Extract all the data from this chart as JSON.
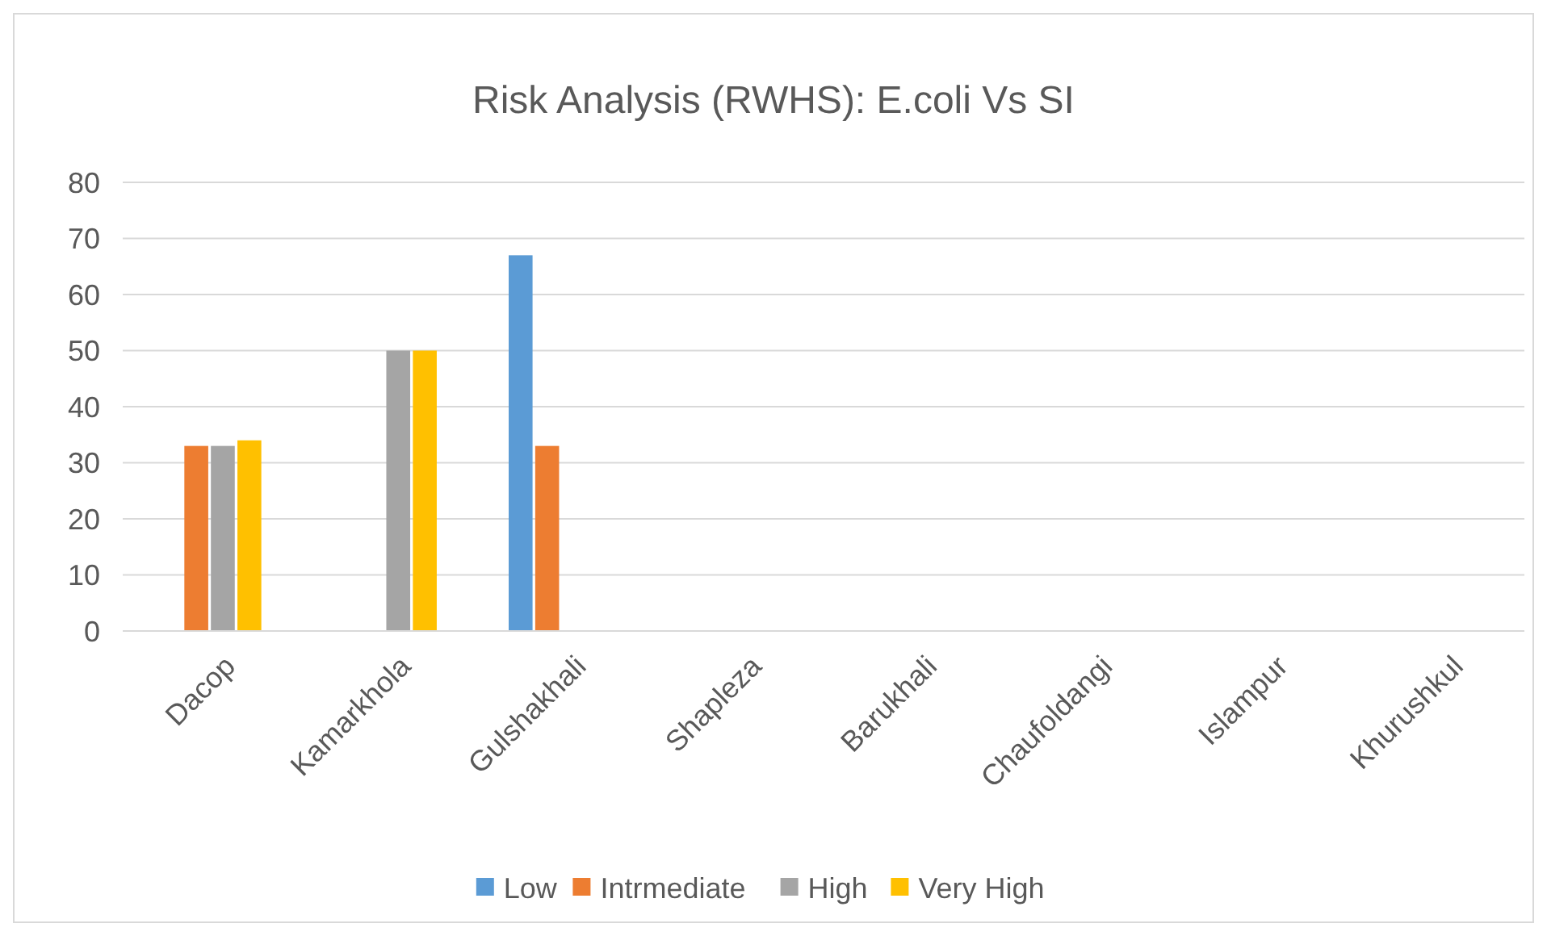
{
  "chart_data": {
    "type": "bar",
    "title": "Risk Analysis (RWHS): E.coli Vs SI",
    "categories": [
      "Dacop",
      "Kamarkhola",
      "Gulshakhali",
      "Shapleza",
      "Barukhali",
      "Chaufoldangi",
      "Islampur",
      "Khurushkul"
    ],
    "series": [
      {
        "name": "Low",
        "color": "#5b9bd5",
        "values": [
          0,
          0,
          67,
          0,
          0,
          0,
          0,
          0
        ]
      },
      {
        "name": "Intrmediate",
        "color": "#ed7d31",
        "values": [
          33,
          0,
          33,
          0,
          0,
          0,
          0,
          0
        ]
      },
      {
        "name": "High",
        "color": "#a5a5a5",
        "values": [
          33,
          50,
          0,
          0,
          0,
          0,
          0,
          0
        ]
      },
      {
        "name": "Very High",
        "color": "#ffc000",
        "values": [
          34,
          50,
          0,
          0,
          0,
          0,
          0,
          0
        ]
      }
    ],
    "ylim": [
      0,
      80
    ],
    "yticks": [
      0,
      10,
      20,
      30,
      40,
      50,
      60,
      70,
      80
    ],
    "grid": "y",
    "legend": "bottom"
  }
}
